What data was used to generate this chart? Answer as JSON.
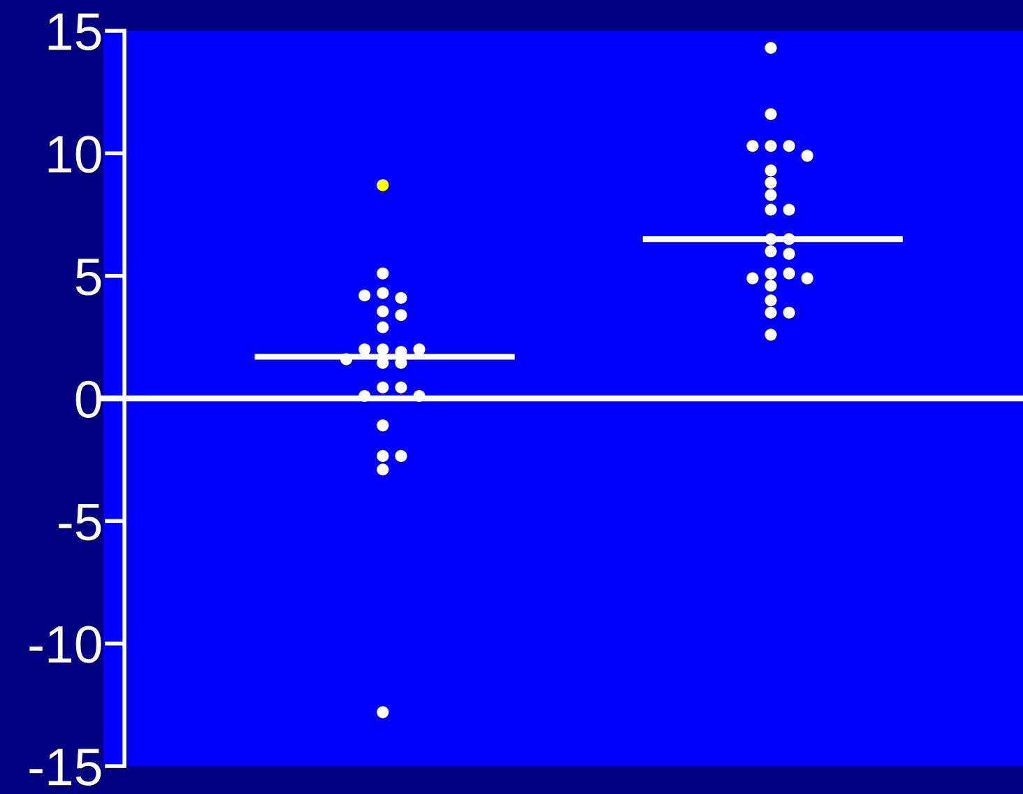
{
  "chart_data": {
    "type": "scatter",
    "categories": [
      null,
      null
    ],
    "series": [
      {
        "colors": [
          "#ffff00",
          "#ffffff"
        ],
        "values": [
          8.7,
          14.3
        ]
      },
      {
        "color": "#ffffff",
        "values": [
          5.1,
          11.6
        ]
      },
      {
        "color": "#ffffff",
        "values": [
          4.3,
          10.3
        ]
      },
      {
        "color": "#ffffff",
        "values": [
          4.1,
          10.3
        ]
      },
      {
        "color": "#ffffff",
        "values": [
          4.2,
          10.3
        ]
      },
      {
        "color": "#ffffff",
        "values": [
          3.55,
          9.9
        ]
      },
      {
        "color": "#ffffff",
        "values": [
          3.4,
          9.3
        ]
      },
      {
        "color": "#ffffff",
        "values": [
          2.9,
          8.8
        ]
      },
      {
        "color": "#ffffff",
        "values": [
          2.0,
          8.3
        ]
      },
      {
        "color": "#ffffff",
        "values": [
          1.9,
          7.7
        ]
      },
      {
        "color": "#ffffff",
        "values": [
          2.0,
          7.7
        ]
      },
      {
        "color": "#ffffff",
        "values": [
          2.0,
          6.5
        ]
      },
      {
        "color": "#ffffff",
        "values": [
          1.6,
          6.5
        ]
      },
      {
        "color": "#ffffff",
        "values": [
          1.45,
          6.0
        ]
      },
      {
        "color": "#ffffff",
        "values": [
          1.45,
          5.9
        ]
      },
      {
        "color": "#ffffff",
        "values": [
          0.45,
          5.1
        ]
      },
      {
        "color": "#ffffff",
        "values": [
          0.45,
          5.1
        ]
      },
      {
        "color": "#ffffff",
        "values": [
          0.1,
          4.9
        ]
      },
      {
        "color": "#ffffff",
        "values": [
          0.1,
          4.9
        ]
      },
      {
        "color": "#ffffff",
        "values": [
          -1.1,
          4.6
        ]
      },
      {
        "color": "#ffffff",
        "values": [
          -2.35,
          4.0
        ]
      },
      {
        "color": "#ffffff",
        "values": [
          -2.35,
          3.5
        ]
      },
      {
        "color": "#ffffff",
        "values": [
          -2.9,
          3.5
        ]
      },
      {
        "color": "#ffffff",
        "values": [
          -12.8,
          2.6
        ]
      }
    ],
    "ylim": [
      -15,
      15
    ],
    "yticks": [
      -15,
      -10,
      -5,
      0,
      5,
      10,
      15
    ],
    "ref_lines": [
      {
        "axis": "y",
        "value": 1.7,
        "color": "#ffffff"
      },
      {
        "axis": "y",
        "value": 6.5,
        "color": "#ffffff"
      }
    ],
    "tick_labels": "y",
    "marker": "circle"
  }
}
